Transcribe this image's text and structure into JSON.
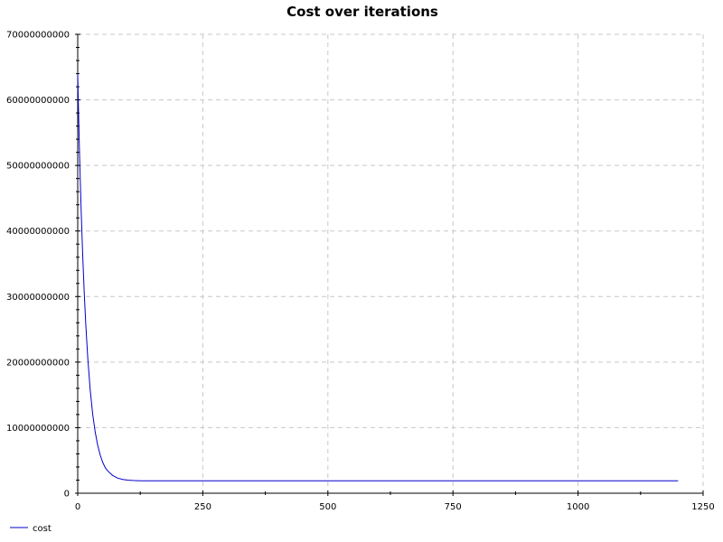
{
  "chart_data": {
    "type": "line",
    "title": "Cost over iterations",
    "xlabel": "",
    "ylabel": "",
    "xlim": [
      0,
      1250
    ],
    "ylim": [
      0,
      70000000000
    ],
    "x_ticks": [
      0,
      250,
      500,
      750,
      1000,
      1250
    ],
    "x_tick_labels": [
      "0",
      "250",
      "500",
      "750",
      "1000",
      "1250"
    ],
    "y_ticks": [
      0,
      10000000000,
      20000000000,
      30000000000,
      40000000000,
      50000000000,
      60000000000,
      70000000000
    ],
    "y_tick_labels": [
      "0",
      "10000000000",
      "20000000000",
      "30000000000",
      "40000000000",
      "50000000000",
      "60000000000",
      "70000000000"
    ],
    "grid": true,
    "legend_position": "bottom-left",
    "series": [
      {
        "name": "cost",
        "color": "#0000cc",
        "x": [
          0,
          1,
          2,
          3,
          4,
          5,
          7,
          10,
          13,
          16,
          20,
          25,
          30,
          35,
          40,
          45,
          50,
          55,
          60,
          70,
          80,
          90,
          100,
          110,
          120,
          130,
          140,
          160,
          200,
          300,
          400,
          500,
          600,
          700,
          800,
          900,
          1000,
          1100,
          1200
        ],
        "y": [
          64000000000,
          60400000000,
          57000000000,
          53800000000,
          50800000000,
          48000000000,
          42800000000,
          36200000000,
          30600000000,
          25900000000,
          20700000000,
          15700000000,
          12000000000,
          9300000000,
          7300000000,
          5800000000,
          4700000000,
          3900000000,
          3400000000,
          2700000000,
          2300000000,
          2100000000,
          2000000000,
          1950000000,
          1920000000,
          1900000000,
          1900000000,
          1900000000,
          1900000000,
          1900000000,
          1900000000,
          1900000000,
          1900000000,
          1900000000,
          1900000000,
          1900000000,
          1900000000,
          1900000000,
          1900000000
        ]
      }
    ]
  }
}
